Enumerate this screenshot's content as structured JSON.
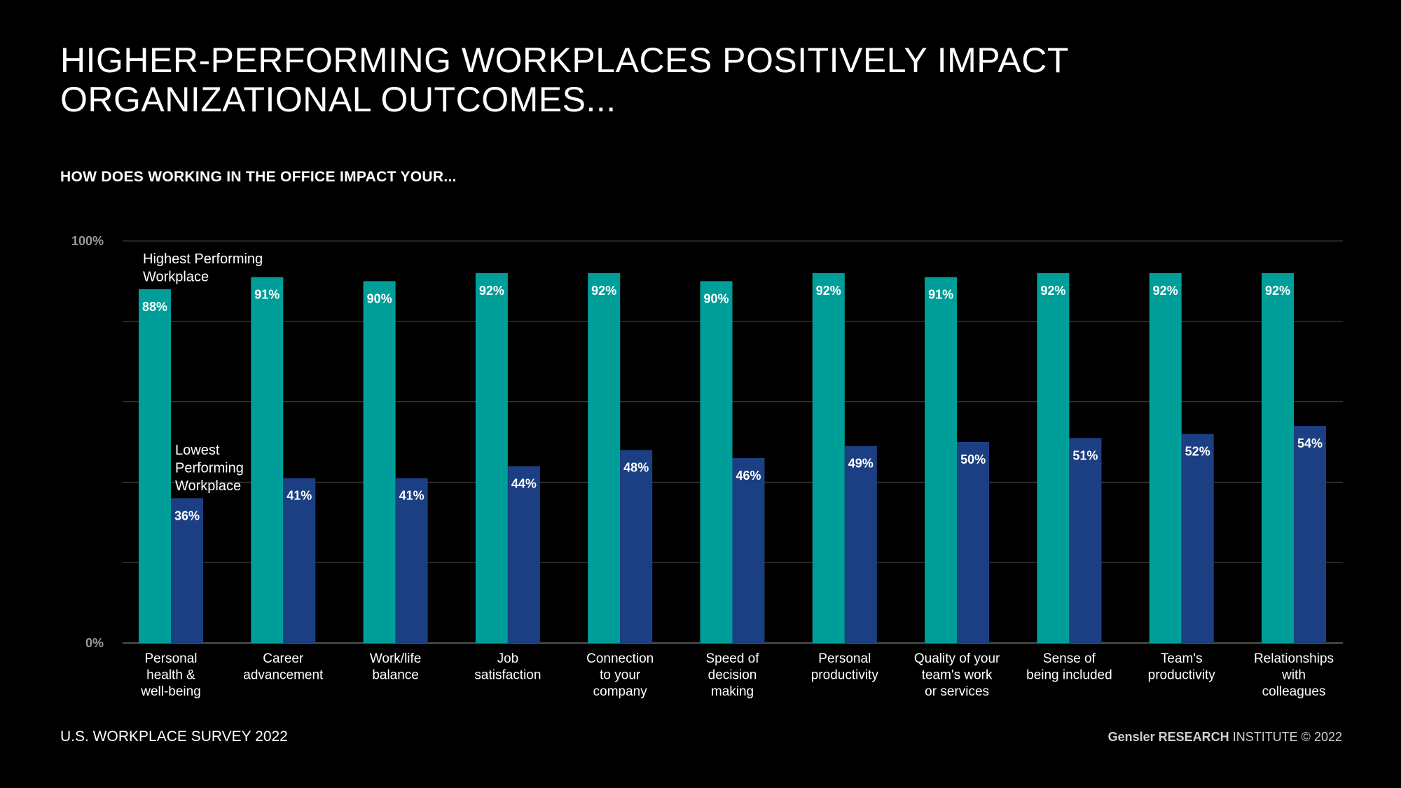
{
  "title_line1": "HIGHER-PERFORMING WORKPLACES POSITIVELY IMPACT",
  "title_line2": "ORGANIZATIONAL OUTCOMES...",
  "subtitle": "HOW DOES WORKING IN THE OFFICE IMPACT YOUR...",
  "footer_left": "U.S. WORKPLACE SURVEY 2022",
  "footer_right": {
    "brand": "Gensler RESEARCH",
    "rest": " INSTITUTE © 2022"
  },
  "chart_data": {
    "type": "bar",
    "ylim": [
      0,
      100
    ],
    "yticks": [
      {
        "value": 100,
        "label": "100%"
      },
      {
        "value": 0,
        "label": "0%"
      }
    ],
    "gridlines": [
      0,
      20,
      40,
      60,
      80,
      100
    ],
    "colors": {
      "highest": "#009e98",
      "lowest": "#1b3f82",
      "grid": "#4a4a4a"
    },
    "annotations": {
      "highest": [
        "Highest Performing",
        "Workplace"
      ],
      "lowest": [
        "Lowest",
        "Performing",
        "Workplace"
      ]
    },
    "categories": [
      [
        "Personal",
        "health &",
        "well-being"
      ],
      [
        "Career",
        "advancement"
      ],
      [
        "Work/life",
        "balance"
      ],
      [
        "Job",
        "satisfaction"
      ],
      [
        "Connection",
        "to your",
        "company"
      ],
      [
        "Speed of",
        "decision",
        "making"
      ],
      [
        "Personal",
        "productivity"
      ],
      [
        "Quality of your",
        "team's work",
        "or services"
      ],
      [
        "Sense of",
        "being included"
      ],
      [
        "Team's",
        "productivity"
      ],
      [
        "Relationships",
        "with",
        "colleagues"
      ]
    ],
    "series": [
      {
        "name": "Highest Performing Workplace",
        "key": "highest",
        "values": [
          88,
          91,
          90,
          92,
          92,
          90,
          92,
          91,
          92,
          92,
          92
        ]
      },
      {
        "name": "Lowest Performing Workplace",
        "key": "lowest",
        "values": [
          36,
          41,
          41,
          44,
          48,
          46,
          49,
          50,
          51,
          52,
          54
        ]
      }
    ],
    "value_suffix": "%"
  }
}
